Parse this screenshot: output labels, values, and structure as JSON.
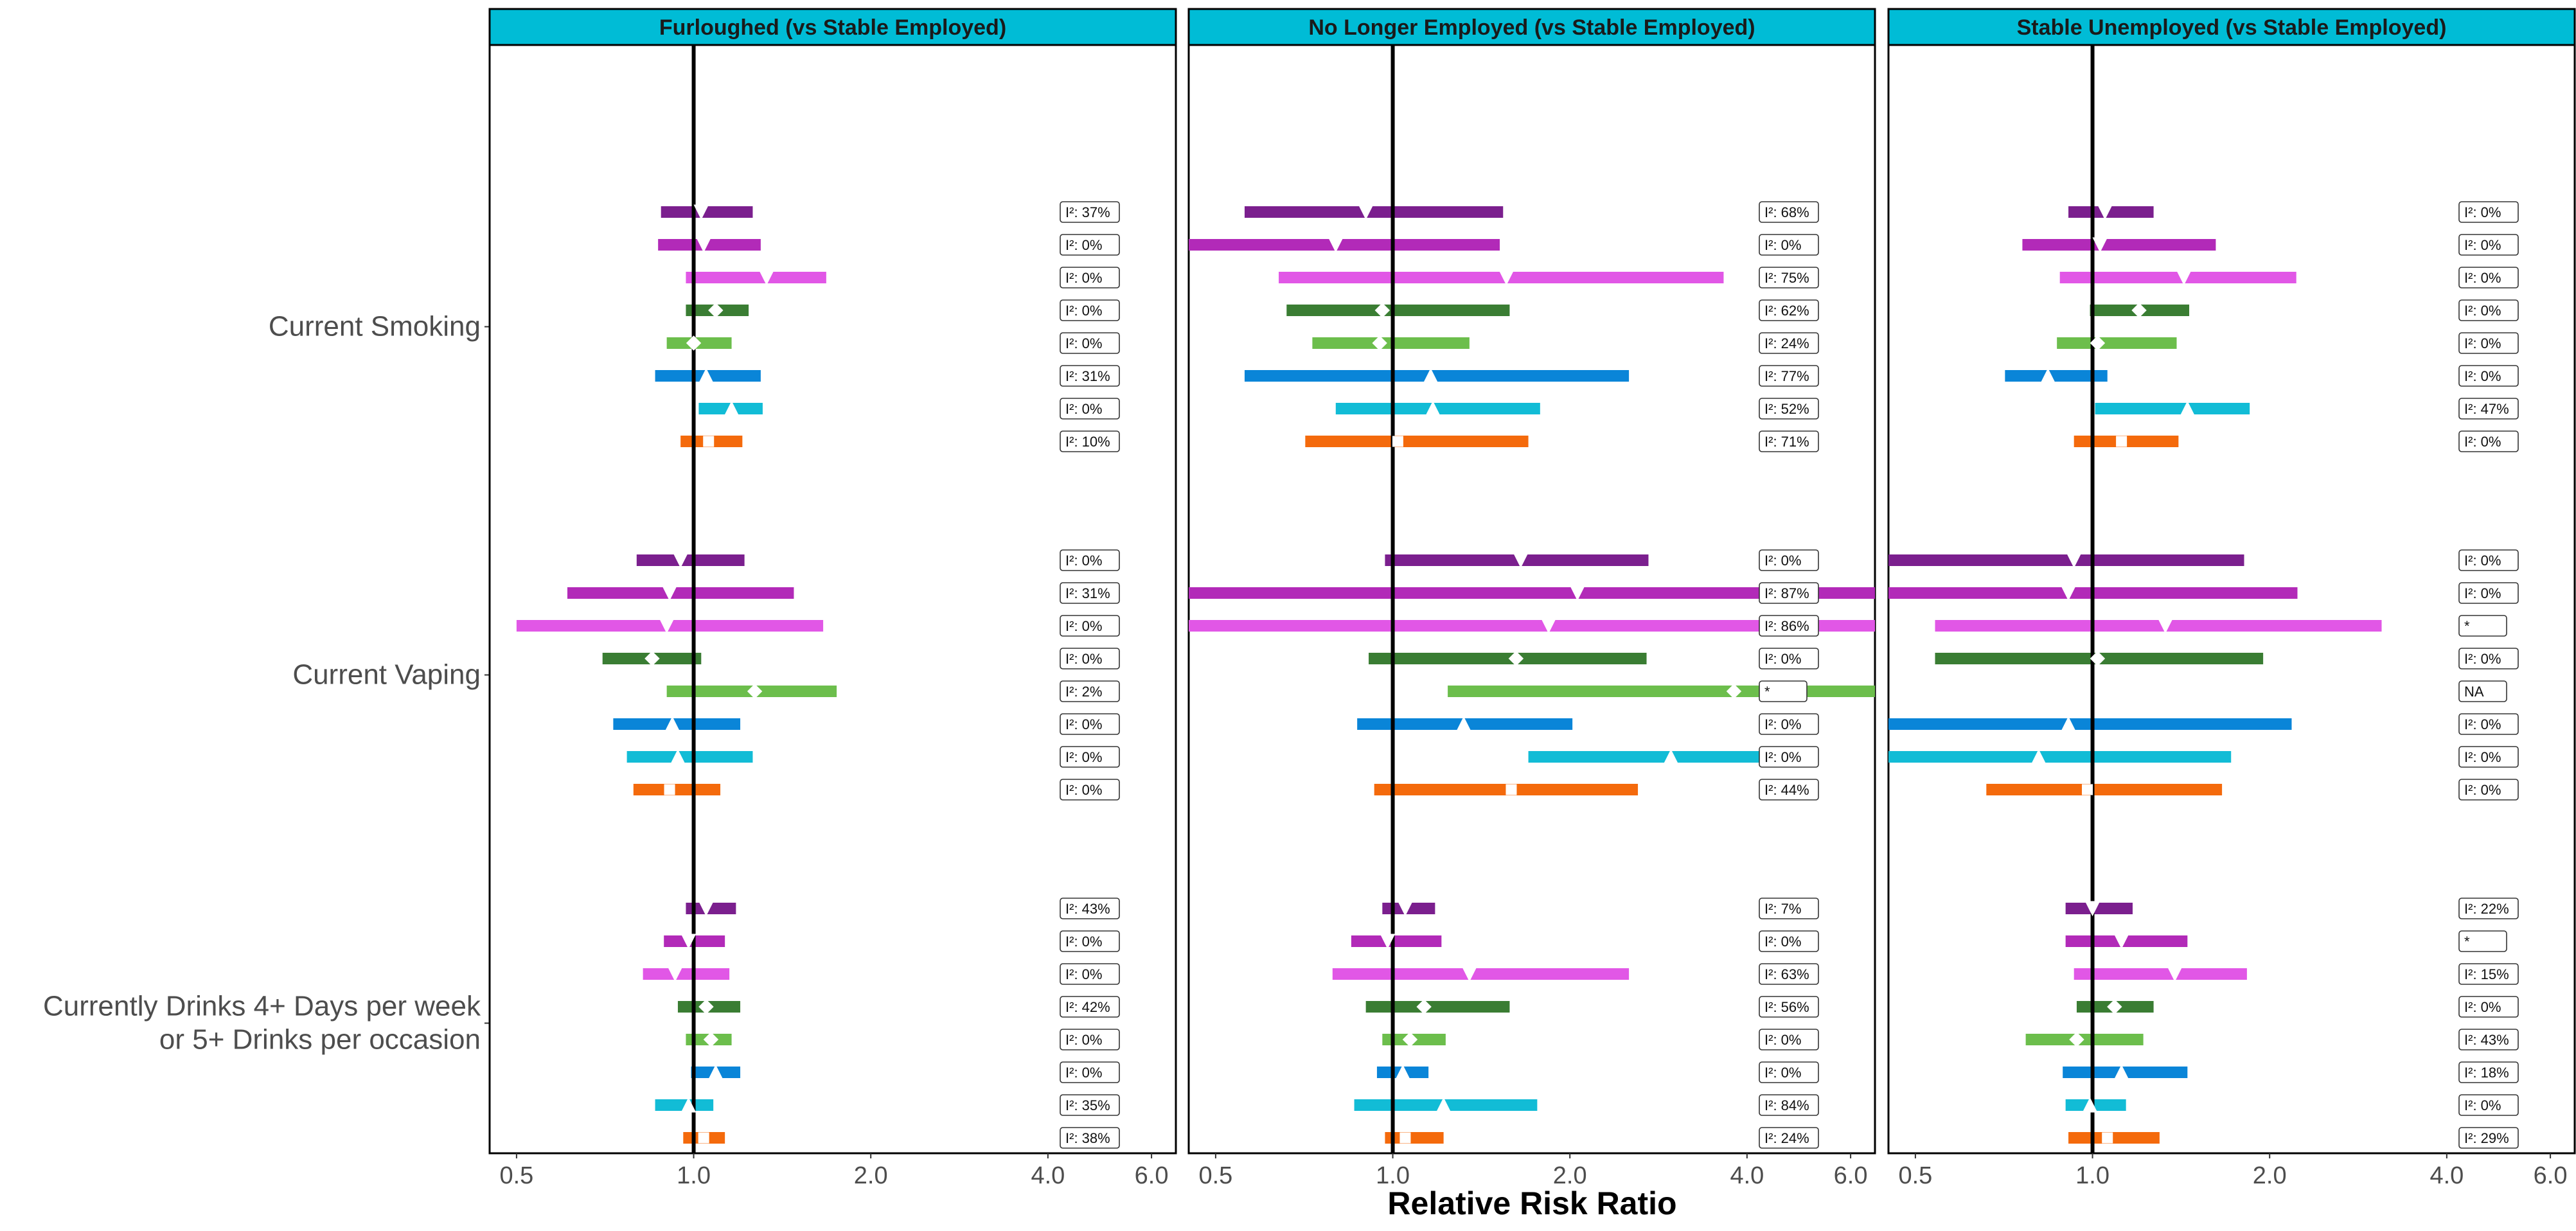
{
  "chart_data": {
    "type": "forest",
    "xlabel": "Relative Risk Ratio",
    "x_scale": "log",
    "xlim": [
      0.45,
      6.6
    ],
    "reference_line": 1.0,
    "x_ticks": [
      {
        "value": 0.5,
        "label": "0.5"
      },
      {
        "value": 1.0,
        "label": "1.0"
      },
      {
        "value": 2.0,
        "label": "2.0"
      },
      {
        "value": 4.0,
        "label": "4.0"
      },
      {
        "value": 6.0,
        "label": "6.0"
      }
    ],
    "outcomes": [
      "Current Smoking",
      "Current Vaping",
      "Currently Drinks 4+ Days per week\nor 5+ Drinks per occasion"
    ],
    "series_styles": [
      {
        "color": "#7B1F8E",
        "marker": "triangle-down"
      },
      {
        "color": "#B22AB8",
        "marker": "triangle-down"
      },
      {
        "color": "#E157E6",
        "marker": "triangle-down"
      },
      {
        "color": "#3A7D33",
        "marker": "diamond"
      },
      {
        "color": "#6CBE4C",
        "marker": "diamond"
      },
      {
        "color": "#0A85D8",
        "marker": "triangle-up"
      },
      {
        "color": "#12BCD6",
        "marker": "triangle-up"
      },
      {
        "color": "#F46A0C",
        "marker": "square"
      }
    ],
    "panels": [
      {
        "title": "Furloughed (vs Stable Employed)",
        "outcomes": [
          {
            "rows": [
              {
                "est": 1.03,
                "lo": 0.88,
                "hi": 1.26,
                "i2": "I²: 37%"
              },
              {
                "est": 1.04,
                "lo": 0.87,
                "hi": 1.3,
                "i2": "I²: 0%"
              },
              {
                "est": 1.33,
                "lo": 0.97,
                "hi": 1.68,
                "i2": "I²: 0%"
              },
              {
                "est": 1.09,
                "lo": 0.97,
                "hi": 1.24,
                "i2": "I²: 0%"
              },
              {
                "est": 1.0,
                "lo": 0.9,
                "hi": 1.16,
                "i2": "I²: 0%"
              },
              {
                "est": 1.05,
                "lo": 0.86,
                "hi": 1.3,
                "i2": "I²: 31%"
              },
              {
                "est": 1.16,
                "lo": 1.02,
                "hi": 1.31,
                "i2": "I²: 0%"
              },
              {
                "est": 1.06,
                "lo": 0.95,
                "hi": 1.21,
                "i2": "I²: 10%"
              }
            ]
          },
          {
            "rows": [
              {
                "est": 0.95,
                "lo": 0.8,
                "hi": 1.22,
                "i2": "I²: 0%"
              },
              {
                "est": 0.91,
                "lo": 0.61,
                "hi": 1.48,
                "i2": "I²: 31%"
              },
              {
                "est": 0.9,
                "lo": 0.5,
                "hi": 1.66,
                "i2": "I²: 0%"
              },
              {
                "est": 0.85,
                "lo": 0.7,
                "hi": 1.03,
                "i2": "I²: 0%"
              },
              {
                "est": 1.27,
                "lo": 0.9,
                "hi": 1.75,
                "i2": "I²: 2%"
              },
              {
                "est": 0.92,
                "lo": 0.73,
                "hi": 1.2,
                "i2": "I²: 0%"
              },
              {
                "est": 0.94,
                "lo": 0.77,
                "hi": 1.26,
                "i2": "I²: 0%"
              },
              {
                "est": 0.91,
                "lo": 0.79,
                "hi": 1.11,
                "i2": "I²: 0%"
              }
            ]
          },
          {
            "rows": [
              {
                "est": 1.05,
                "lo": 0.97,
                "hi": 1.18,
                "i2": "I²: 43%"
              },
              {
                "est": 0.98,
                "lo": 0.89,
                "hi": 1.13,
                "i2": "I²: 0%"
              },
              {
                "est": 0.93,
                "lo": 0.82,
                "hi": 1.15,
                "i2": "I²: 0%"
              },
              {
                "est": 1.05,
                "lo": 0.94,
                "hi": 1.2,
                "i2": "I²: 42%"
              },
              {
                "est": 1.07,
                "lo": 0.97,
                "hi": 1.16,
                "i2": "I²: 0%"
              },
              {
                "est": 1.09,
                "lo": 0.99,
                "hi": 1.2,
                "i2": "I²: 0%"
              },
              {
                "est": 0.98,
                "lo": 0.86,
                "hi": 1.08,
                "i2": "I²: 35%"
              },
              {
                "est": 1.04,
                "lo": 0.96,
                "hi": 1.13,
                "i2": "I²: 38%"
              }
            ]
          }
        ]
      },
      {
        "title": "No Longer Employed (vs Stable Employed)",
        "outcomes": [
          {
            "rows": [
              {
                "est": 0.9,
                "lo": 0.56,
                "hi": 1.54,
                "i2": "I²: 68%"
              },
              {
                "est": 0.8,
                "lo": 0.41,
                "hi": 1.52,
                "i2": "I²: 0%"
              },
              {
                "est": 1.56,
                "lo": 0.64,
                "hi": 3.65,
                "i2": "I²: 75%"
              },
              {
                "est": 0.96,
                "lo": 0.66,
                "hi": 1.58,
                "i2": "I²: 62%"
              },
              {
                "est": 0.95,
                "lo": 0.73,
                "hi": 1.35,
                "i2": "I²: 24%"
              },
              {
                "est": 1.16,
                "lo": 0.56,
                "hi": 2.52,
                "i2": "I²: 77%"
              },
              {
                "est": 1.17,
                "lo": 0.8,
                "hi": 1.78,
                "i2": "I²: 52%"
              },
              {
                "est": 1.02,
                "lo": 0.71,
                "hi": 1.7,
                "i2": "I²: 71%"
              }
            ]
          },
          {
            "rows": [
              {
                "est": 1.65,
                "lo": 0.97,
                "hi": 2.72,
                "i2": "I²: 0%"
              },
              {
                "est": 2.06,
                "lo": 0.4,
                "hi": 7.0,
                "i2": "I²: 87%"
              },
              {
                "est": 1.84,
                "lo": 0.4,
                "hi": 7.0,
                "i2": "I²: 86%"
              },
              {
                "est": 1.62,
                "lo": 0.91,
                "hi": 2.7,
                "i2": "I²: 0%"
              },
              {
                "est": 3.8,
                "lo": 1.24,
                "hi": 7.0,
                "i2": "*"
              },
              {
                "est": 1.32,
                "lo": 0.87,
                "hi": 2.02,
                "i2": "I²: 0%"
              },
              {
                "est": 2.97,
                "lo": 1.7,
                "hi": 4.2,
                "i2": "I²: 0%"
              },
              {
                "est": 1.59,
                "lo": 0.93,
                "hi": 2.61,
                "i2": "I²: 44%"
              }
            ]
          },
          {
            "rows": [
              {
                "est": 1.05,
                "lo": 0.96,
                "hi": 1.18,
                "i2": "I²: 7%"
              },
              {
                "est": 0.98,
                "lo": 0.85,
                "hi": 1.21,
                "i2": "I²: 0%"
              },
              {
                "est": 1.35,
                "lo": 0.79,
                "hi": 2.52,
                "i2": "I²: 63%"
              },
              {
                "est": 1.13,
                "lo": 0.9,
                "hi": 1.58,
                "i2": "I²: 56%"
              },
              {
                "est": 1.07,
                "lo": 0.96,
                "hi": 1.23,
                "i2": "I²: 0%"
              },
              {
                "est": 1.04,
                "lo": 0.94,
                "hi": 1.15,
                "i2": "I²: 0%"
              },
              {
                "est": 1.22,
                "lo": 0.86,
                "hi": 1.76,
                "i2": "I²: 84%"
              },
              {
                "est": 1.05,
                "lo": 0.97,
                "hi": 1.22,
                "i2": "I²: 24%"
              }
            ]
          }
        ]
      },
      {
        "title": "Stable Unemployed (vs Stable Employed)",
        "outcomes": [
          {
            "rows": [
              {
                "est": 1.05,
                "lo": 0.91,
                "hi": 1.27,
                "i2": "I²: 0%"
              },
              {
                "est": 1.03,
                "lo": 0.76,
                "hi": 1.62,
                "i2": "I²: 0%"
              },
              {
                "est": 1.43,
                "lo": 0.88,
                "hi": 2.22,
                "i2": "I²: 0%"
              },
              {
                "est": 1.2,
                "lo": 0.99,
                "hi": 1.46,
                "i2": "I²: 0%"
              },
              {
                "est": 1.02,
                "lo": 0.87,
                "hi": 1.39,
                "i2": "I²: 0%"
              },
              {
                "est": 0.84,
                "lo": 0.71,
                "hi": 1.06,
                "i2": "I²: 0%"
              },
              {
                "est": 1.45,
                "lo": 1.01,
                "hi": 1.85,
                "i2": "I²: 47%"
              },
              {
                "est": 1.12,
                "lo": 0.93,
                "hi": 1.4,
                "i2": "I²: 0%"
              }
            ]
          },
          {
            "rows": [
              {
                "est": 0.93,
                "lo": 0.41,
                "hi": 1.81,
                "i2": "I²: 0%"
              },
              {
                "est": 0.91,
                "lo": 0.4,
                "hi": 2.23,
                "i2": "I²: 0%"
              },
              {
                "est": 1.33,
                "lo": 0.54,
                "hi": 3.1,
                "i2": "*"
              },
              {
                "est": 1.02,
                "lo": 0.54,
                "hi": 1.95,
                "i2": "I²: 0%"
              },
              {
                "est": null,
                "lo": null,
                "hi": null,
                "i2": "NA"
              },
              {
                "est": 0.91,
                "lo": 0.4,
                "hi": 2.18,
                "i2": "I²: 0%"
              },
              {
                "est": 0.81,
                "lo": 0.4,
                "hi": 1.72,
                "i2": "I²: 0%"
              },
              {
                "est": 0.98,
                "lo": 0.66,
                "hi": 1.66,
                "i2": "I²: 0%"
              }
            ]
          },
          {
            "rows": [
              {
                "est": 1.0,
                "lo": 0.9,
                "hi": 1.17,
                "i2": "I²: 22%"
              },
              {
                "est": 1.12,
                "lo": 0.9,
                "hi": 1.45,
                "i2": "*"
              },
              {
                "est": 1.38,
                "lo": 0.93,
                "hi": 1.83,
                "i2": "I²: 15%"
              },
              {
                "est": 1.09,
                "lo": 0.94,
                "hi": 1.27,
                "i2": "I²: 0%"
              },
              {
                "est": 0.94,
                "lo": 0.77,
                "hi": 1.22,
                "i2": "I²: 43%"
              },
              {
                "est": 1.12,
                "lo": 0.89,
                "hi": 1.45,
                "i2": "I²: 18%"
              },
              {
                "est": 0.99,
                "lo": 0.9,
                "hi": 1.14,
                "i2": "I²: 0%"
              },
              {
                "est": 1.06,
                "lo": 0.91,
                "hi": 1.3,
                "i2": "I²: 29%"
              }
            ]
          }
        ]
      }
    ]
  }
}
